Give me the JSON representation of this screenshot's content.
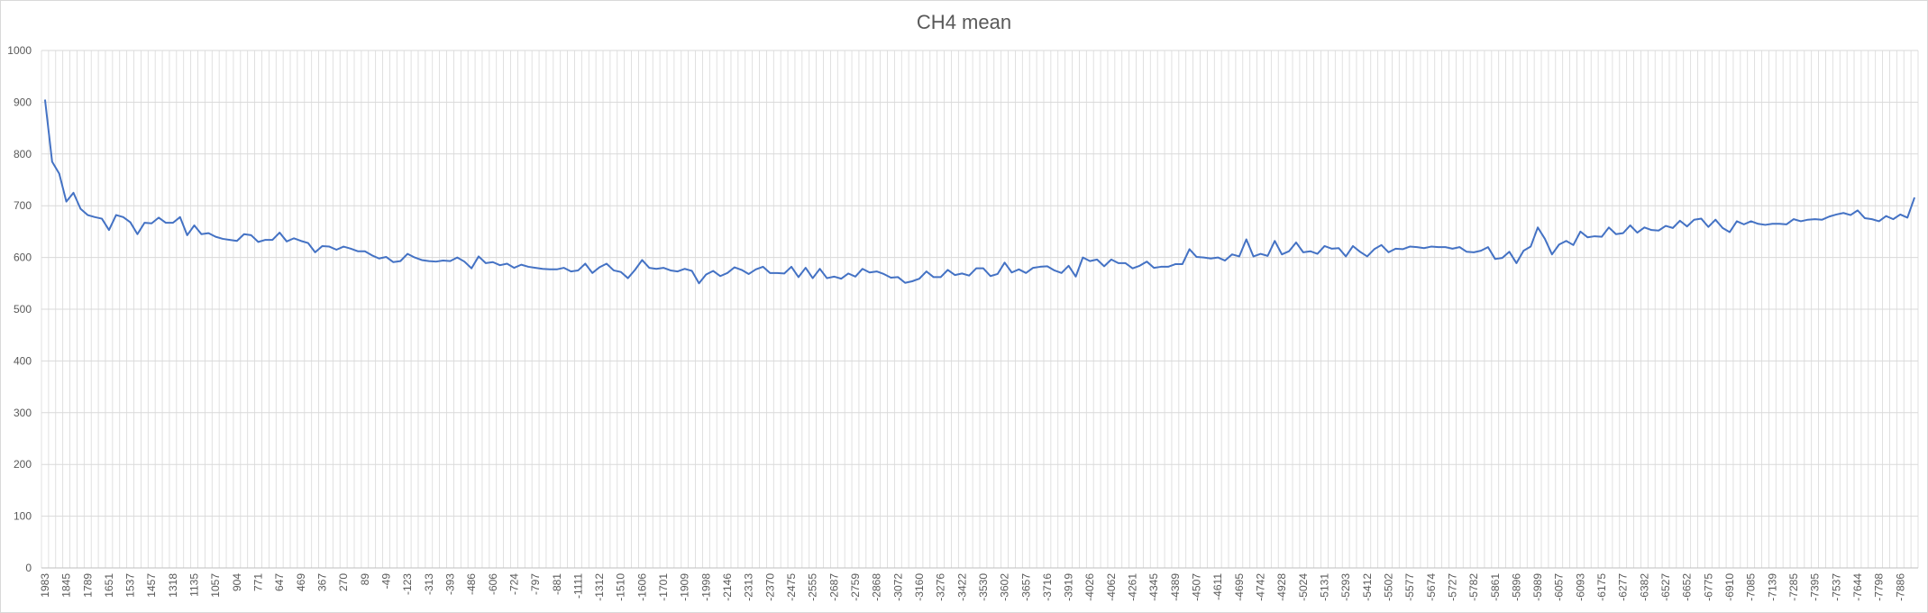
{
  "chart_data": {
    "type": "line",
    "title": "CH4 mean",
    "xlabel": "",
    "ylabel": "",
    "ylim": [
      0,
      1000
    ],
    "yticks": [
      0,
      100,
      200,
      300,
      400,
      500,
      600,
      700,
      800,
      900,
      1000
    ],
    "grid": true,
    "legend": "none",
    "colors": {
      "line": "#4472c4",
      "grid": "#d9d9d9",
      "text": "#595959"
    },
    "x_tick_labels": [
      "1983",
      "1845",
      "1789",
      "1651",
      "1537",
      "1457",
      "1318",
      "1135",
      "1057",
      "904",
      "771",
      "647",
      "469",
      "367",
      "270",
      "89",
      "-49",
      "-123",
      "-313",
      "-393",
      "-486",
      "-606",
      "-724",
      "-797",
      "-881",
      "-1111",
      "-1312",
      "-1510",
      "-1606",
      "-1701",
      "-1909",
      "-1998",
      "-2146",
      "-2313",
      "-2370",
      "-2475",
      "-2555",
      "-2687",
      "-2759",
      "-2868",
      "-3072",
      "-3160",
      "-3276",
      "-3422",
      "-3530",
      "-3602",
      "-3657",
      "-3716",
      "-3919",
      "-4026",
      "-4062",
      "-4261",
      "-4345",
      "-4389",
      "-4507",
      "-4611",
      "-4695",
      "-4742",
      "-4928",
      "-5024",
      "-5131",
      "-5293",
      "-5412",
      "-5502",
      "-5577",
      "-5674",
      "-5727",
      "-5782",
      "-5861",
      "-5896",
      "-5989",
      "-6057",
      "-6093",
      "-6175",
      "-6277",
      "-6382",
      "-6527",
      "-6652",
      "-6775",
      "-6910",
      "-7085",
      "-7139",
      "-7285",
      "-7395",
      "-7537",
      "-7644",
      "-7798",
      "-7886"
    ],
    "values": [
      905,
      785,
      762,
      708,
      725,
      694,
      682,
      678,
      675,
      653,
      682,
      678,
      668,
      645,
      667,
      666,
      677,
      667,
      667,
      678,
      643,
      662,
      645,
      647,
      640,
      636,
      634,
      632,
      645,
      643,
      630,
      634,
      634,
      648,
      631,
      637,
      632,
      628,
      610,
      622,
      621,
      615,
      621,
      617,
      612,
      612,
      604,
      598,
      601,
      591,
      593,
      607,
      600,
      595,
      593,
      592,
      594,
      593,
      600,
      592,
      579,
      602,
      589,
      591,
      585,
      588,
      580,
      586,
      582,
      580,
      578,
      577,
      577,
      580,
      573,
      575,
      588,
      570,
      581,
      588,
      575,
      572,
      560,
      576,
      595,
      580,
      578,
      580,
      575,
      573,
      578,
      574,
      550,
      567,
      574,
      564,
      570,
      581,
      576,
      568,
      577,
      582,
      570,
      570,
      569,
      582,
      562,
      580,
      560,
      578,
      560,
      563,
      559,
      569,
      563,
      578,
      571,
      573,
      568,
      561,
      562,
      551,
      554,
      559,
      573,
      562,
      562,
      576,
      566,
      569,
      565,
      579,
      579,
      564,
      568,
      590,
      571,
      577,
      570,
      580,
      582,
      583,
      575,
      570,
      584,
      563,
      600,
      593,
      596,
      583,
      596,
      589,
      589,
      579,
      584,
      592,
      580,
      582,
      582,
      587,
      587,
      616,
      601,
      600,
      598,
      600,
      594,
      606,
      602,
      635,
      602,
      607,
      603,
      632,
      606,
      612,
      629,
      610,
      612,
      607,
      622,
      617,
      618,
      602,
      622,
      611,
      602,
      616,
      624,
      610,
      617,
      616,
      621,
      620,
      618,
      621,
      620,
      620,
      617,
      620,
      611,
      610,
      613,
      620,
      597,
      599,
      611,
      589,
      613,
      621,
      658,
      636,
      606,
      625,
      632,
      624,
      650,
      639,
      641,
      640,
      658,
      645,
      647,
      662,
      648,
      658,
      653,
      652,
      661,
      657,
      671,
      660,
      673,
      675,
      659,
      673,
      657,
      649,
      670,
      664,
      670,
      665,
      663,
      665,
      665,
      664,
      674,
      670,
      673,
      674,
      673,
      679,
      683,
      686,
      682,
      691,
      676,
      674,
      670,
      680,
      674,
      683,
      677,
      716
    ]
  }
}
